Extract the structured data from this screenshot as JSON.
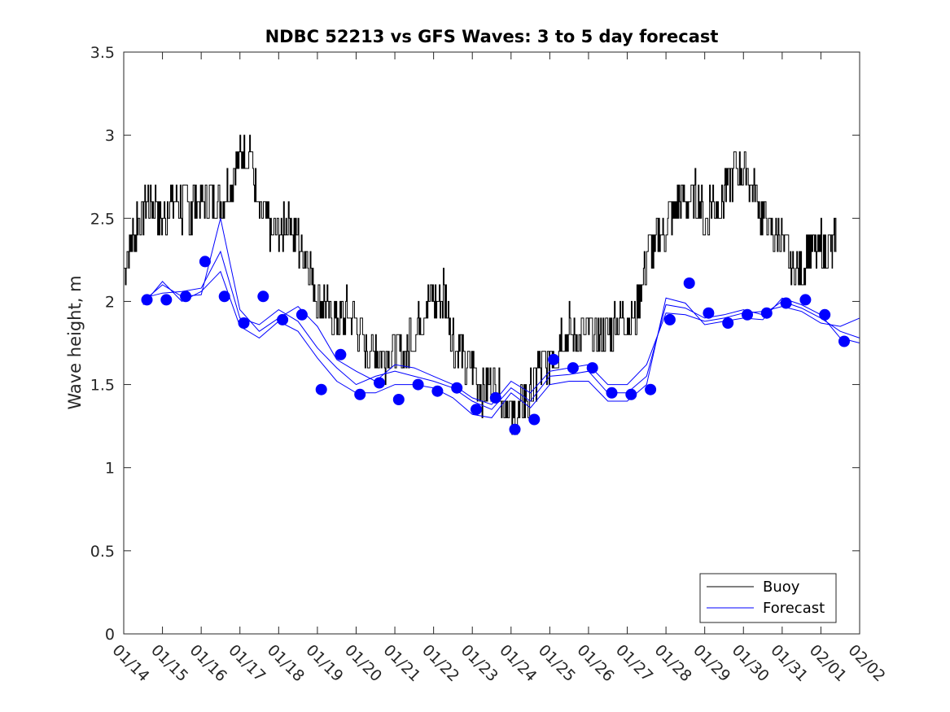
{
  "chart_data": {
    "type": "line",
    "title": "NDBC 52213 vs GFS Waves: 3 to 5 day forecast",
    "xlabel": "",
    "ylabel": "Wave height, m",
    "xlim": [
      0,
      19
    ],
    "ylim": [
      0,
      3.5
    ],
    "yticks": [
      "0",
      "0.5",
      "1",
      "1.5",
      "2",
      "2.5",
      "3",
      "3.5"
    ],
    "ytick_values": [
      0,
      0.5,
      1,
      1.5,
      2,
      2.5,
      3,
      3.5
    ],
    "xtick_labels": [
      "01/14",
      "01/15",
      "01/16",
      "01/17",
      "01/18",
      "01/19",
      "01/20",
      "01/21",
      "01/22",
      "01/23",
      "01/24",
      "01/25",
      "01/26",
      "01/27",
      "01/28",
      "01/29",
      "01/30",
      "01/31",
      "02/01",
      "02/02"
    ],
    "legend": {
      "placement": "bottom-right",
      "entries": [
        "Buoy",
        "Forecast"
      ]
    },
    "colors": {
      "buoy": "#000000",
      "forecast": "#0000ff",
      "axis": "#262626"
    },
    "buoy_series": {
      "name": "Buoy",
      "x": [
        0,
        0.25,
        0.5,
        0.75,
        1,
        1.25,
        1.5,
        1.75,
        2,
        2.25,
        2.5,
        2.75,
        3,
        3.25,
        3.5,
        3.75,
        4,
        4.25,
        4.5,
        4.75,
        5,
        5.25,
        5.5,
        5.75,
        6,
        6.25,
        6.5,
        6.75,
        7,
        7.25,
        7.5,
        7.75,
        8,
        8.25,
        8.5,
        8.75,
        9,
        9.25,
        9.5,
        9.75,
        10,
        10.25,
        10.5,
        10.75,
        11,
        11.25,
        11.5,
        11.75,
        12,
        12.25,
        12.5,
        12.75,
        13,
        13.25,
        13.5,
        13.75,
        14,
        14.25,
        14.5,
        14.75,
        15,
        15.25,
        15.5,
        15.75,
        16,
        16.25,
        16.5,
        16.75,
        17,
        17.25,
        17.5,
        17.75,
        18,
        18.25,
        18.4
      ],
      "values": [
        2.2,
        2.4,
        2.55,
        2.6,
        2.5,
        2.6,
        2.55,
        2.55,
        2.6,
        2.65,
        2.6,
        2.7,
        2.85,
        2.95,
        2.45,
        2.45,
        2.4,
        2.5,
        2.35,
        2.25,
        2.0,
        1.95,
        1.9,
        1.95,
        1.85,
        1.7,
        1.75,
        1.65,
        1.7,
        1.7,
        1.8,
        1.95,
        2.0,
        2.05,
        1.75,
        1.65,
        1.6,
        1.45,
        1.5,
        1.45,
        1.3,
        1.35,
        1.45,
        1.6,
        1.65,
        1.75,
        1.85,
        1.8,
        1.75,
        1.8,
        1.75,
        1.9,
        1.85,
        1.95,
        2.25,
        2.35,
        2.45,
        2.55,
        2.6,
        2.65,
        2.5,
        2.6,
        2.65,
        2.75,
        2.8,
        2.7,
        2.5,
        2.4,
        2.35,
        2.2,
        2.2,
        2.3,
        2.35,
        2.3,
        2.4
      ]
    },
    "forecast_series": [
      {
        "name": "Forecast",
        "x": [
          0.5,
          1,
          1.5,
          2,
          2.5,
          3,
          3.5,
          4,
          4.5,
          5,
          5.5,
          6,
          6.5,
          7,
          7.5,
          8,
          8.5,
          9,
          9.5,
          10,
          10.5,
          11,
          11.5,
          12,
          12.5,
          13,
          13.5,
          14,
          14.5,
          15,
          15.5,
          16,
          16.5,
          17,
          17.5,
          18,
          18.5,
          19
        ],
        "values": [
          2.0,
          2.1,
          2.03,
          2.04,
          2.5,
          1.95,
          1.82,
          1.9,
          1.97,
          1.85,
          1.65,
          1.58,
          1.52,
          1.62,
          1.6,
          1.55,
          1.5,
          1.42,
          1.38,
          1.52,
          1.45,
          1.58,
          1.6,
          1.62,
          1.5,
          1.5,
          1.62,
          1.93,
          1.92,
          1.88,
          1.9,
          1.93,
          1.94,
          1.97,
          1.94,
          1.87,
          1.85,
          1.9
        ]
      },
      {
        "name": "Forecast",
        "x": [
          0.5,
          1,
          1.5,
          2,
          2.5,
          3,
          3.5,
          4,
          4.5,
          5,
          5.5,
          6,
          6.5,
          7,
          7.5,
          8,
          8.5,
          9,
          9.5,
          10,
          10.5,
          11,
          11.5,
          12,
          12.5,
          13,
          13.5,
          14,
          14.5,
          15,
          15.5,
          16,
          16.5,
          17,
          17.5,
          18,
          18.5,
          19
        ],
        "values": [
          2.02,
          2.05,
          2.06,
          2.08,
          2.3,
          1.9,
          1.86,
          1.95,
          1.88,
          1.72,
          1.6,
          1.5,
          1.55,
          1.58,
          1.55,
          1.52,
          1.48,
          1.4,
          1.35,
          1.48,
          1.4,
          1.55,
          1.56,
          1.58,
          1.45,
          1.45,
          1.55,
          1.98,
          1.96,
          1.9,
          1.92,
          1.95,
          1.92,
          2.0,
          1.96,
          1.9,
          1.82,
          1.78
        ]
      },
      {
        "name": "Forecast",
        "x": [
          0.5,
          1,
          1.5,
          2,
          2.5,
          3,
          3.5,
          4,
          4.5,
          5,
          5.5,
          6,
          6.5,
          7,
          7.5,
          8,
          8.5,
          9,
          9.5,
          10,
          10.5,
          11,
          11.5,
          12,
          12.5,
          13,
          13.5,
          14,
          14.5,
          15,
          15.5,
          16,
          16.5,
          17,
          17.5,
          18,
          18.5,
          19
        ],
        "values": [
          1.98,
          2.12,
          2.0,
          2.06,
          2.18,
          1.85,
          1.78,
          1.88,
          1.82,
          1.66,
          1.52,
          1.45,
          1.45,
          1.5,
          1.5,
          1.48,
          1.42,
          1.32,
          1.3,
          1.45,
          1.36,
          1.5,
          1.52,
          1.52,
          1.4,
          1.4,
          1.5,
          2.02,
          1.99,
          1.86,
          1.88,
          1.9,
          1.89,
          2.02,
          1.98,
          1.92,
          1.78,
          1.75
        ]
      }
    ],
    "forecast_markers": {
      "name": "Forecast",
      "x": [
        0.6,
        1.1,
        1.6,
        2.1,
        2.6,
        3.1,
        3.6,
        4.1,
        4.6,
        5.1,
        5.6,
        6.1,
        6.6,
        7.1,
        7.6,
        8.1,
        8.6,
        9.1,
        9.6,
        10.1,
        10.6,
        11.1,
        11.6,
        12.1,
        12.6,
        13.1,
        13.6,
        14.1,
        14.6,
        15.1,
        15.6,
        16.1,
        16.6,
        17.1,
        17.6,
        18.1,
        18.6
      ],
      "values": [
        2.01,
        2.01,
        2.03,
        2.24,
        2.03,
        1.87,
        2.03,
        1.89,
        1.92,
        1.47,
        1.68,
        1.44,
        1.51,
        1.41,
        1.5,
        1.46,
        1.48,
        1.35,
        1.42,
        1.23,
        1.29,
        1.65,
        1.6,
        1.6,
        1.45,
        1.44,
        1.47,
        1.89,
        2.11,
        1.93,
        1.87,
        1.92,
        1.93,
        1.99,
        2.01,
        1.92,
        1.76
      ]
    }
  }
}
